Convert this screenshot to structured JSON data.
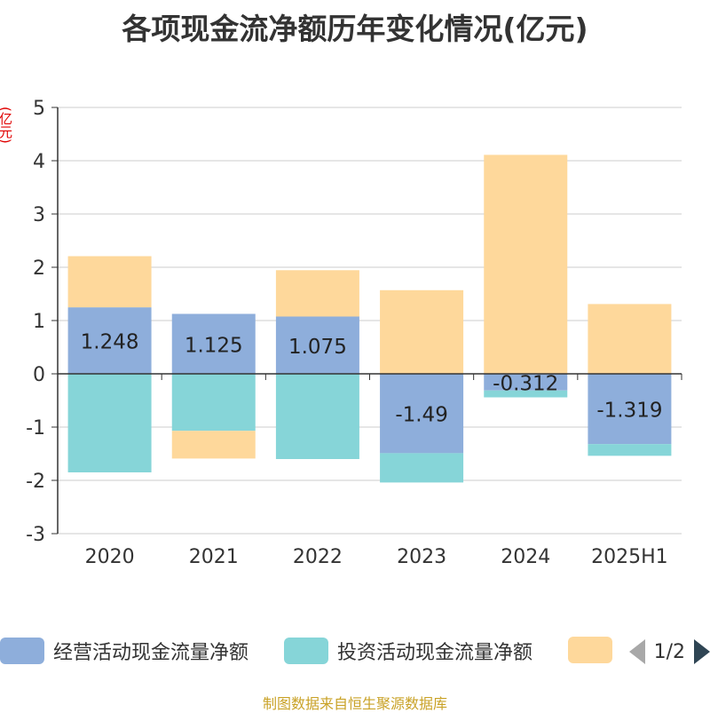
{
  "chart_data": {
    "type": "bar",
    "title": "各项现金流净额历年变化情况(亿元)",
    "ylabel": "(亿元)",
    "categories": [
      "2020",
      "2021",
      "2022",
      "2023",
      "2024",
      "2025H1"
    ],
    "ylim": [
      -3,
      5
    ],
    "yticks": [
      5,
      4,
      3,
      2,
      1,
      0,
      -1,
      -2,
      -3
    ],
    "stacked": true,
    "grid": true,
    "legend_position": "bottom",
    "series": [
      {
        "name": "经营活动现金流量净额",
        "color": "#8eaedb",
        "values": [
          1.248,
          1.125,
          1.075,
          -1.49,
          -0.312,
          -1.319
        ],
        "labels": [
          "1.248",
          "1.125",
          "1.075",
          "-1.49",
          "-0.312",
          "-1.319"
        ]
      },
      {
        "name": "投资活动现金流量净额",
        "color": "#86d5d8",
        "values": [
          -1.85,
          -1.07,
          -1.6,
          -0.55,
          -0.13,
          -0.22
        ]
      },
      {
        "color": "#fed89b",
        "values": [
          0.96,
          -0.52,
          0.87,
          1.57,
          4.11,
          1.31
        ]
      }
    ]
  },
  "legend": {
    "page": "1/2"
  },
  "source": "制图数据来自恒生聚源数据库"
}
